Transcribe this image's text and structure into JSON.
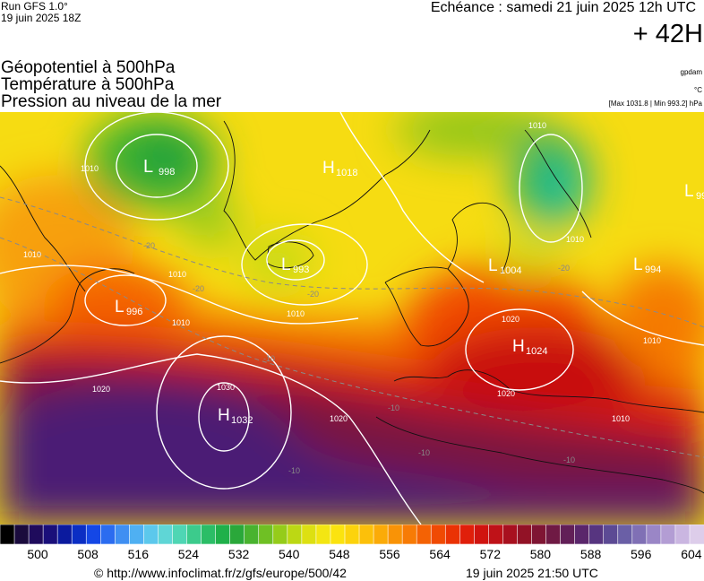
{
  "header": {
    "run": "Run GFS 1.0°",
    "run_date": "19 juin 2025 18Z",
    "echeance": "Echéance : samedi 21 juin 2025 12h UTC",
    "lead_time": "+ 42H",
    "titles": [
      "Géopotentiel à 500hPa",
      "Température à 500hPa",
      "Pression au niveau de la mer"
    ],
    "unit_gpdam": "gpdam",
    "unit_c": "°C",
    "minmax": "[Max 1031.8 | Min 993.2] hPa"
  },
  "map": {
    "pressure_centers": [
      {
        "type": "L",
        "value": "998"
      },
      {
        "type": "H",
        "value": "1018"
      },
      {
        "type": "L",
        "value": "993"
      },
      {
        "type": "L",
        "value": "996"
      },
      {
        "type": "L",
        "value": "1004"
      },
      {
        "type": "L",
        "value": "994"
      },
      {
        "type": "L",
        "value": "99"
      },
      {
        "type": "H",
        "value": "1024"
      },
      {
        "type": "H",
        "value": "1032"
      }
    ],
    "isobar_labels": [
      "1010",
      "1010",
      "1010",
      "1010",
      "1010",
      "1010",
      "1020",
      "1020",
      "1020",
      "1020",
      "1030",
      "1010",
      "1010",
      "1010"
    ],
    "temp_labels": [
      "-20",
      "-20",
      "-20",
      "-10",
      "-10",
      "-10",
      "-10",
      "-10",
      "-20"
    ]
  },
  "legend": {
    "colors": [
      "#000000",
      "#1a0b3d",
      "#1f0b5c",
      "#1a0f7a",
      "#0b1a9e",
      "#0b2ec4",
      "#1447e6",
      "#2b6cf0",
      "#3f8ff2",
      "#4fb0f2",
      "#5cc8ec",
      "#5fd6d6",
      "#4fd6b4",
      "#3ccb8c",
      "#2bbd66",
      "#1fb04a",
      "#2aa83a",
      "#49b32f",
      "#6fc024",
      "#95cc1a",
      "#bcd814",
      "#dde012",
      "#f3e612",
      "#fbe30f",
      "#fcd30c",
      "#fcc00a",
      "#fbab08",
      "#f99306",
      "#f77b05",
      "#f46204",
      "#f04a03",
      "#ea3204",
      "#e01f0a",
      "#d0140f",
      "#bf1218",
      "#a8101f",
      "#921226",
      "#7f1533",
      "#6f1a44",
      "#621f57",
      "#5a266b",
      "#573580",
      "#5c4a94",
      "#6a5fa6",
      "#8070b5",
      "#9a86c6",
      "#b39dd4",
      "#cab6e1",
      "#ddcdea"
    ],
    "labels": [
      "500",
      "508",
      "516",
      "524",
      "532",
      "540",
      "548",
      "556",
      "564",
      "572",
      "580",
      "588",
      "596",
      "604"
    ]
  },
  "footer": {
    "url": "© http://www.infoclimat.fr/z/gfs/europe/500/42",
    "timestamp": "19 juin 2025 21:50 UTC"
  }
}
